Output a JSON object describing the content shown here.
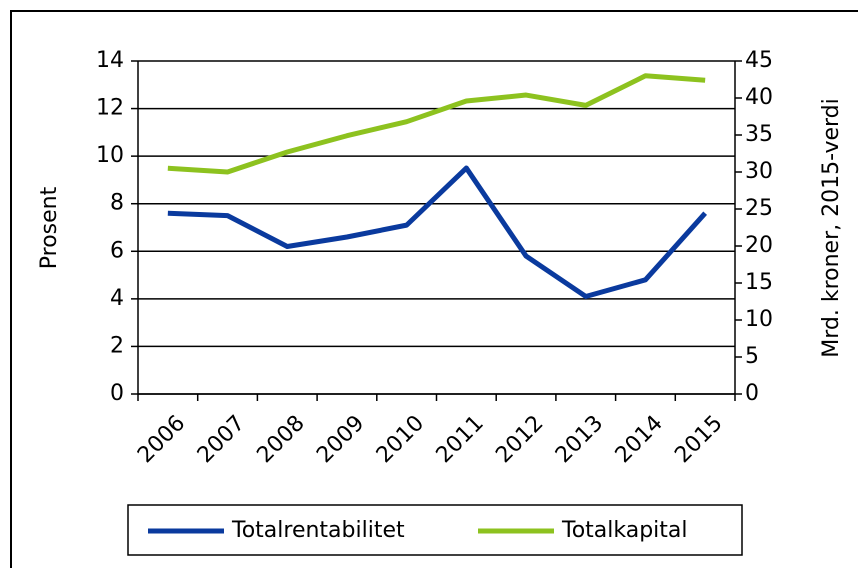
{
  "chart_data": {
    "type": "line",
    "ylabel": "Prosent",
    "y2label": "Mrd. kroner, 2015-verdi",
    "categories": [
      "2006",
      "2007",
      "2008",
      "2009",
      "2010",
      "2011",
      "2012",
      "2013",
      "2014",
      "2015"
    ],
    "series": [
      {
        "name": "Totalrentabilitet",
        "color": "#0a3a9e",
        "values": [
          7.6,
          7.5,
          6.2,
          6.6,
          7.1,
          9.5,
          5.8,
          4.1,
          4.8,
          7.6
        ]
      },
      {
        "name": "Totalkapital",
        "color": "#8dc21f",
        "axis": "y2",
        "values": [
          30.5,
          30.0,
          32.7,
          34.9,
          36.8,
          39.6,
          40.4,
          39.0,
          43.0,
          42.4
        ]
      }
    ],
    "ylim": [
      0,
      14
    ],
    "yticks": [
      0,
      2,
      4,
      6,
      8,
      10,
      12,
      14
    ],
    "y2lim": [
      0,
      45
    ],
    "y2ticks": [
      0,
      5,
      10,
      15,
      20,
      25,
      30,
      35,
      40,
      45
    ],
    "grid": true,
    "legend": "bottom"
  }
}
